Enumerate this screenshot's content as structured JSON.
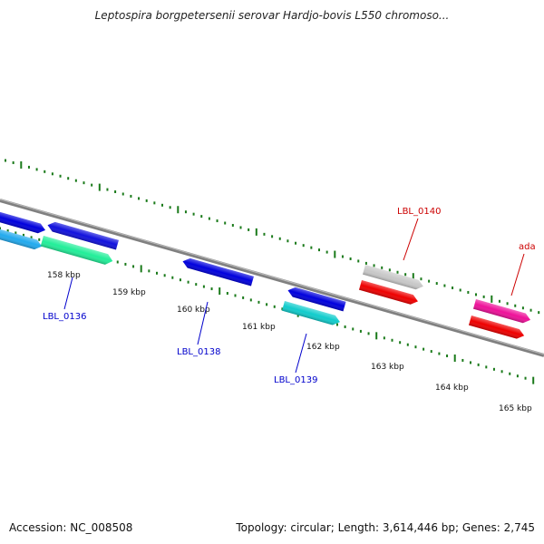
{
  "title": "Leptospira borgpetersenii serovar Hardjo-bovis L550 chromoso...",
  "footer": {
    "accession": "Accession: NC_008508",
    "summary": "Topology: circular; Length: 3,614,446 bp; Genes: 2,745"
  },
  "colors": {
    "backbone": "#808080",
    "tick": "#1a7a1a",
    "label_blue": "#0000cc",
    "label_red": "#cc0000"
  },
  "kbp_labels": [
    "158 kbp",
    "159 kbp",
    "160 kbp",
    "161 kbp",
    "162 kbp",
    "163 kbp",
    "164 kbp",
    "165 kbp"
  ],
  "genes": [
    {
      "name": "gene-a",
      "color": "#0000dd",
      "dir": "right"
    },
    {
      "name": "gene-b",
      "color": "#1111dd",
      "dir": "left"
    },
    {
      "name": "gene-c",
      "color": "#22aaee",
      "dir": "right"
    },
    {
      "name": "gene-d",
      "color": "#22ee99",
      "dir": "right"
    },
    {
      "name": "gene-lbl-0138",
      "color": "#0000dd",
      "dir": "left"
    },
    {
      "name": "gene-lbl-0139-upper",
      "color": "#0000dd",
      "dir": "left"
    },
    {
      "name": "gene-lbl-0139",
      "color": "#11cccc",
      "dir": "right"
    },
    {
      "name": "gene-lbl-0140",
      "color": "#c8c8c8",
      "dir": "right"
    },
    {
      "name": "gene-lbl-0140-lower",
      "color": "#ee0000",
      "dir": "right"
    },
    {
      "name": "gene-ada",
      "color": "#ee1199",
      "dir": "right"
    },
    {
      "name": "gene-ada-lower",
      "color": "#ee0000",
      "dir": "right"
    }
  ],
  "gene_labels": [
    {
      "text": "LBL_0136",
      "color": "#0000cc"
    },
    {
      "text": "LBL_0138",
      "color": "#0000cc"
    },
    {
      "text": "LBL_0139",
      "color": "#0000cc"
    },
    {
      "text": "LBL_0140",
      "color": "#cc0000"
    },
    {
      "text": "ada",
      "color": "#cc0000"
    }
  ]
}
